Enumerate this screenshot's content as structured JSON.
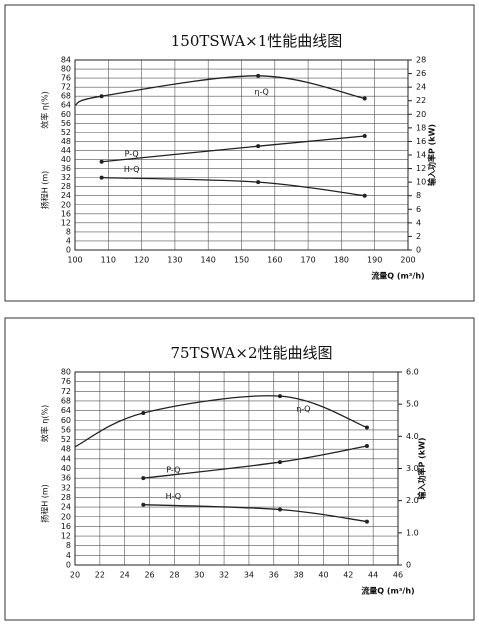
{
  "chart_data": [
    {
      "type": "line",
      "title": "150TSWA×1性能曲线图",
      "xlabel": "流量Q (m³/h)",
      "ylabels": [
        "效率 η(%)",
        "扬程H (m)"
      ],
      "y2label": "输入功率P (kW)",
      "xlim": [
        100,
        200
      ],
      "xticks": [
        100,
        110,
        120,
        130,
        140,
        150,
        160,
        170,
        180,
        190,
        200
      ],
      "ylim": [
        0,
        84
      ],
      "yticks": [
        0,
        4,
        8,
        12,
        16,
        20,
        24,
        28,
        32,
        36,
        40,
        44,
        48,
        52,
        56,
        60,
        64,
        68,
        72,
        76,
        80,
        84
      ],
      "y2lim": [
        0,
        28
      ],
      "y2ticks": [
        0,
        2,
        4,
        6,
        8,
        10,
        12,
        14,
        16,
        18,
        20,
        22,
        24,
        26,
        28
      ],
      "grid": true,
      "color": "#222222",
      "series": [
        {
          "name": "η-Q",
          "x": [
            100,
            108,
            155,
            187
          ],
          "values": [
            64,
            68,
            77,
            67
          ]
        },
        {
          "name": "P-Q",
          "axis": "y2",
          "x": [
            108,
            155,
            187
          ],
          "values": [
            13,
            15.3,
            16.8
          ]
        },
        {
          "name": "H-Q",
          "x": [
            108,
            155,
            187
          ],
          "values": [
            32,
            30,
            24
          ]
        }
      ]
    },
    {
      "type": "line",
      "title": "75TSWA×2性能曲线图",
      "xlabel": "流量Q (m³/h)",
      "ylabels": [
        "效率 η(%)",
        "扬程H (m)"
      ],
      "y2label": "输入功率P (kW)",
      "xlim": [
        20,
        46
      ],
      "xticks": [
        20,
        22,
        24,
        26,
        28,
        30,
        32,
        34,
        36,
        38,
        40,
        42,
        44,
        46
      ],
      "ylim": [
        0,
        80
      ],
      "yticks": [
        0,
        4,
        8,
        12,
        16,
        20,
        24,
        28,
        32,
        36,
        40,
        44,
        48,
        52,
        56,
        60,
        64,
        68,
        72,
        76,
        80
      ],
      "y2lim": [
        0,
        6
      ],
      "y2ticks": [
        0,
        {
          "value": 1,
          "label": "1.0"
        },
        {
          "value": 2,
          "label": "2.0"
        },
        {
          "value": 3,
          "label": "3.0"
        },
        {
          "value": 4,
          "label": "4.0"
        },
        {
          "value": 5,
          "label": "5.0"
        },
        {
          "value": 6,
          "label": "6.0"
        }
      ],
      "grid": true,
      "color": "#222222",
      "series": [
        {
          "name": "η-Q",
          "x": [
            20,
            25.5,
            36.5,
            43.5
          ],
          "values": [
            49,
            63,
            70,
            57
          ]
        },
        {
          "name": "P-Q",
          "axis": "y2",
          "x": [
            25.5,
            36.5,
            43.5
          ],
          "values": [
            2.7,
            3.2,
            3.7
          ]
        },
        {
          "name": "H-Q",
          "x": [
            25.5,
            36.5,
            43.5
          ],
          "values": [
            25,
            23,
            18
          ]
        }
      ]
    }
  ]
}
